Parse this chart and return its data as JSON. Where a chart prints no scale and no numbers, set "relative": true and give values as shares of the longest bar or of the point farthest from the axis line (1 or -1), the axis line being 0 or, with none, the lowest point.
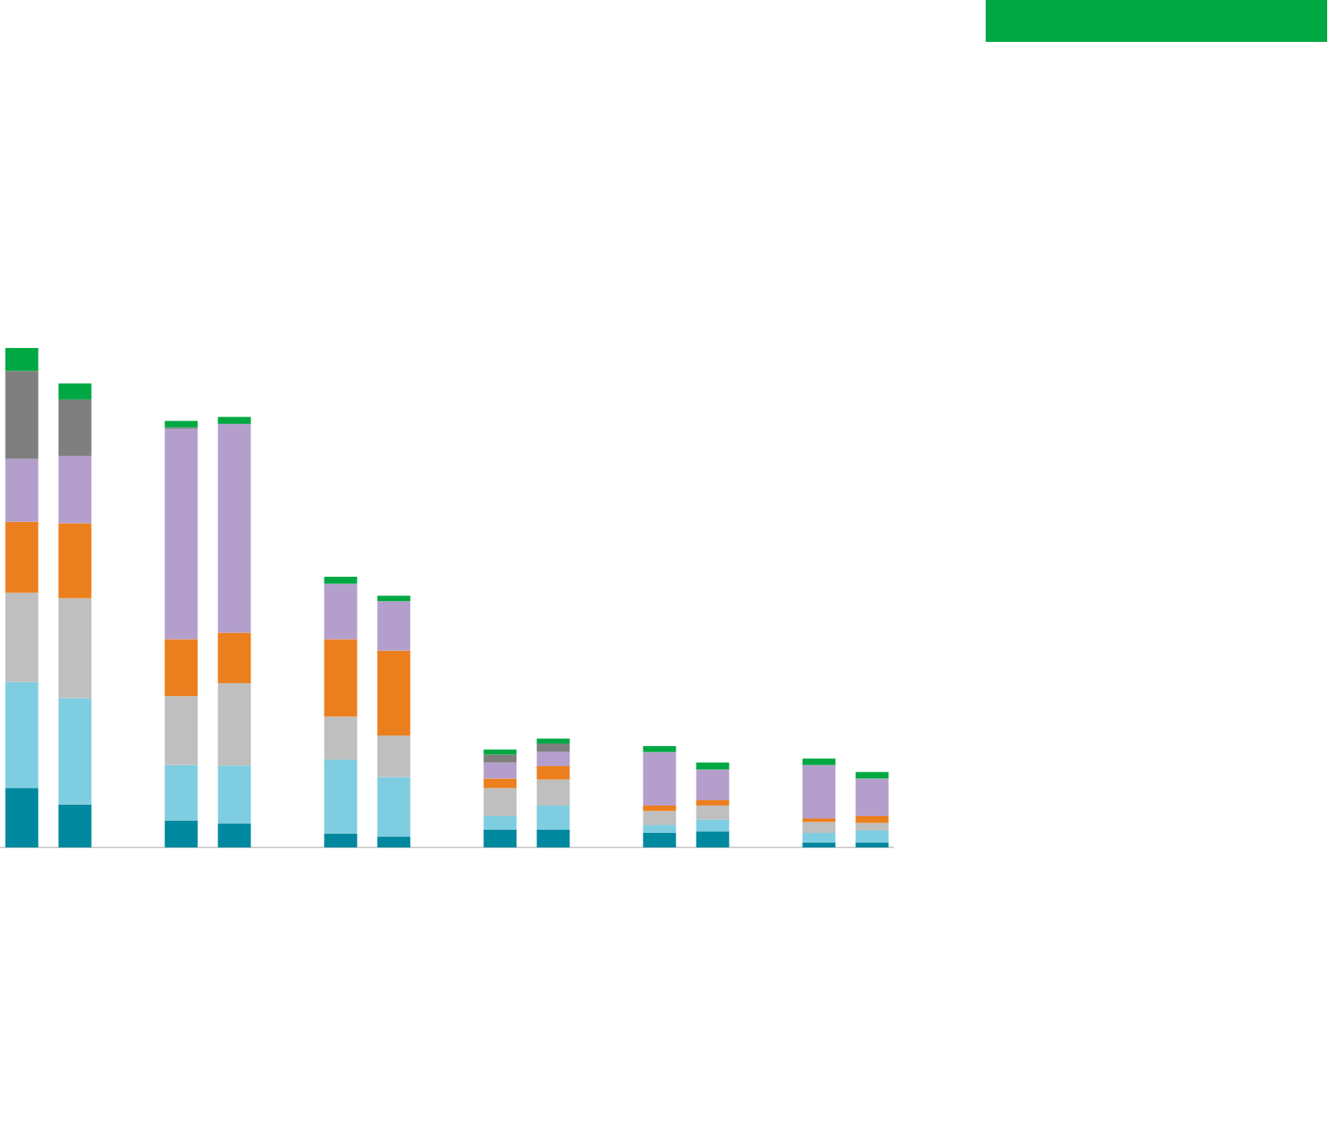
{
  "chart_data": {
    "type": "bar",
    "stacked": true,
    "relative": true,
    "categories": [
      null,
      null,
      null,
      null,
      null,
      null,
      null,
      null,
      null,
      null,
      null,
      null
    ],
    "series": [
      {
        "color": "#00889e",
        "values": [
          0.119,
          0.086,
          0.054,
          0.048,
          0.028,
          0.022,
          0.036,
          0.036,
          0.029,
          0.032,
          0.01,
          0.01
        ]
      },
      {
        "color": "#7fcde0",
        "values": [
          0.212,
          0.213,
          0.111,
          0.116,
          0.148,
          0.119,
          0.027,
          0.048,
          0.016,
          0.024,
          0.019,
          0.024
        ]
      },
      {
        "color": "#bfbfbf",
        "values": [
          0.179,
          0.2,
          0.138,
          0.165,
          0.086,
          0.083,
          0.056,
          0.052,
          0.028,
          0.028,
          0.022,
          0.015
        ]
      },
      {
        "color": "#eb7f1e",
        "values": [
          0.142,
          0.15,
          0.114,
          0.101,
          0.155,
          0.17,
          0.019,
          0.027,
          0.011,
          0.011,
          0.007,
          0.014
        ]
      },
      {
        "color": "#b49fcc",
        "values": [
          0.126,
          0.135,
          0.421,
          0.418,
          0.111,
          0.099,
          0.032,
          0.029,
          0.107,
          0.061,
          0.107,
          0.075
        ]
      },
      {
        "color": "#7f7f7f",
        "values": [
          0.176,
          0.113,
          0.003,
          null,
          null,
          null,
          0.016,
          0.016,
          null,
          null,
          null,
          null
        ]
      },
      {
        "color": "#00a843",
        "values": [
          0.046,
          0.032,
          0.013,
          0.014,
          0.014,
          0.011,
          0.01,
          0.01,
          0.012,
          0.014,
          0.013,
          0.013
        ]
      }
    ]
  }
}
